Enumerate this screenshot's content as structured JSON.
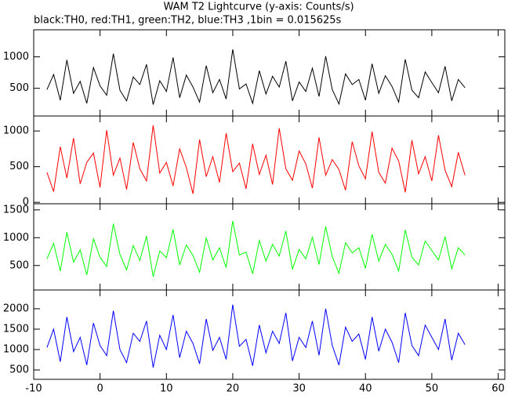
{
  "chart_data": [
    {
      "type": "line",
      "title": "WAM T2 Lightcurve (y-axis: Counts/s)",
      "subtitle": "black:TH0, red:TH1, green:TH2, blue:TH3 ,1bin = 0.015625s",
      "color": "#000000",
      "xlim": [
        -10,
        61
      ],
      "ylim": [
        60,
        1430
      ],
      "yticks": [
        500,
        1000
      ],
      "x": [
        -8,
        -7,
        -6,
        -5,
        -4,
        -3,
        -2,
        -1,
        0,
        1,
        2,
        3,
        4,
        5,
        6,
        7,
        8,
        9,
        10,
        11,
        12,
        13,
        14,
        15,
        16,
        17,
        18,
        19,
        20,
        21,
        22,
        23,
        24,
        25,
        26,
        27,
        28,
        29,
        30,
        31,
        32,
        33,
        34,
        35,
        36,
        37,
        38,
        39,
        40,
        41,
        42,
        43,
        44,
        45,
        46,
        47,
        48,
        49,
        50,
        51,
        52,
        53,
        54,
        55
      ],
      "values": [
        480,
        720,
        310,
        950,
        420,
        610,
        260,
        830,
        540,
        390,
        1050,
        470,
        300,
        680,
        560,
        880,
        240,
        620,
        450,
        990,
        350,
        710,
        520,
        280,
        860,
        430,
        640,
        330,
        1120,
        490,
        570,
        260,
        780,
        410,
        690,
        520,
        930,
        300,
        600,
        450,
        820,
        370,
        1010,
        480,
        250,
        730,
        560,
        640,
        310,
        890,
        420,
        700,
        530,
        280,
        960,
        470,
        350,
        760,
        590,
        430,
        850,
        300,
        640,
        510
      ]
    },
    {
      "type": "line",
      "color": "#ff0000",
      "xlim": [
        -10,
        61
      ],
      "ylim": [
        -20,
        1210
      ],
      "yticks": [
        0,
        500,
        1000
      ],
      "x": [
        -8,
        -7,
        -6,
        -5,
        -4,
        -3,
        -2,
        -1,
        0,
        1,
        2,
        3,
        4,
        5,
        6,
        7,
        8,
        9,
        10,
        11,
        12,
        13,
        14,
        15,
        16,
        17,
        18,
        19,
        20,
        21,
        22,
        23,
        24,
        25,
        26,
        27,
        28,
        29,
        30,
        31,
        32,
        33,
        34,
        35,
        36,
        37,
        38,
        39,
        40,
        41,
        42,
        43,
        44,
        45,
        46,
        47,
        48,
        49,
        50,
        51,
        52,
        53,
        54,
        55
      ],
      "values": [
        420,
        150,
        780,
        340,
        900,
        260,
        560,
        690,
        210,
        1010,
        380,
        620,
        180,
        840,
        470,
        300,
        1080,
        410,
        560,
        230,
        750,
        490,
        120,
        880,
        360,
        640,
        280,
        970,
        430,
        550,
        190,
        820,
        390,
        660,
        250,
        1040,
        470,
        310,
        720,
        540,
        200,
        910,
        380,
        600,
        460,
        170,
        850,
        510,
        330,
        990,
        420,
        270,
        760,
        580,
        140,
        870,
        400,
        640,
        300,
        940,
        450,
        220,
        700,
        380
      ]
    },
    {
      "type": "line",
      "color": "#00ff00",
      "xlim": [
        -10,
        61
      ],
      "ylim": [
        60,
        1610
      ],
      "yticks": [
        500,
        1000,
        1500
      ],
      "x": [
        -8,
        -7,
        -6,
        -5,
        -4,
        -3,
        -2,
        -1,
        0,
        1,
        2,
        3,
        4,
        5,
        6,
        7,
        8,
        9,
        10,
        11,
        12,
        13,
        14,
        15,
        16,
        17,
        18,
        19,
        20,
        21,
        22,
        23,
        24,
        25,
        26,
        27,
        28,
        29,
        30,
        31,
        32,
        33,
        34,
        35,
        36,
        37,
        38,
        39,
        40,
        41,
        42,
        43,
        44,
        45,
        46,
        47,
        48,
        49,
        50,
        51,
        52,
        53,
        54,
        55
      ],
      "values": [
        620,
        900,
        400,
        1100,
        560,
        780,
        330,
        980,
        650,
        480,
        1250,
        700,
        420,
        860,
        590,
        1030,
        300,
        760,
        640,
        1150,
        510,
        870,
        680,
        380,
        1000,
        600,
        820,
        460,
        1300,
        690,
        740,
        350,
        950,
        580,
        880,
        670,
        1120,
        430,
        790,
        620,
        1010,
        520,
        1200,
        660,
        360,
        910,
        730,
        820,
        450,
        1060,
        580,
        880,
        700,
        400,
        1140,
        650,
        510,
        940,
        770,
        600,
        1020,
        440,
        820,
        690
      ]
    },
    {
      "type": "line",
      "color": "#0000ff",
      "xlim": [
        -10,
        61
      ],
      "ylim": [
        270,
        2460
      ],
      "yticks": [
        500,
        1000,
        1500,
        2000
      ],
      "xticks": [
        -10,
        0,
        10,
        20,
        30,
        40,
        50,
        60
      ],
      "x": [
        -8,
        -7,
        -6,
        -5,
        -4,
        -3,
        -2,
        -1,
        0,
        1,
        2,
        3,
        4,
        5,
        6,
        7,
        8,
        9,
        10,
        11,
        12,
        13,
        14,
        15,
        16,
        17,
        18,
        19,
        20,
        21,
        22,
        23,
        24,
        25,
        26,
        27,
        28,
        29,
        30,
        31,
        32,
        33,
        34,
        35,
        36,
        37,
        38,
        39,
        40,
        41,
        42,
        43,
        44,
        45,
        46,
        47,
        48,
        49,
        50,
        51,
        52,
        53,
        54,
        55
      ],
      "values": [
        1050,
        1500,
        700,
        1800,
        950,
        1300,
        620,
        1650,
        1100,
        850,
        1950,
        1000,
        680,
        1400,
        1200,
        1700,
        560,
        1350,
        1000,
        1850,
        800,
        1450,
        1150,
        650,
        1750,
        980,
        1300,
        760,
        2100,
        1080,
        1250,
        600,
        1600,
        920,
        1450,
        1150,
        1900,
        720,
        1300,
        1050,
        1700,
        860,
        2000,
        1100,
        620,
        1550,
        1200,
        1380,
        760,
        1800,
        960,
        1500,
        1180,
        680,
        1900,
        1100,
        850,
        1600,
        1300,
        1000,
        1750,
        740,
        1400,
        1120
      ]
    }
  ]
}
